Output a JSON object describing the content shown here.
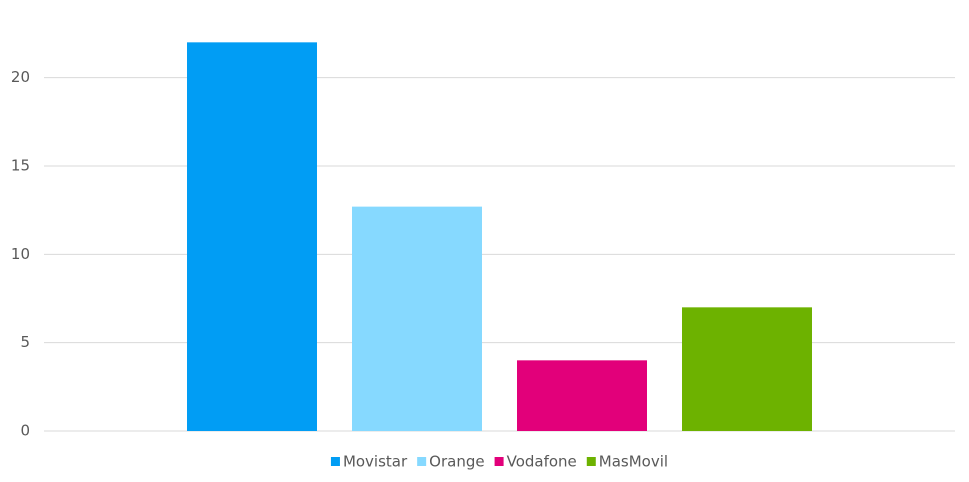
{
  "chart_data": {
    "type": "bar",
    "categories": [
      null
    ],
    "series": [
      {
        "name": "Movistar",
        "color": "#019df4",
        "values": [
          22
        ]
      },
      {
        "name": "Orange",
        "color": "#86d9ff",
        "values": [
          12.7
        ]
      },
      {
        "name": "Vodafone",
        "color": "#e2007a",
        "values": [
          4
        ]
      },
      {
        "name": "MasMovil",
        "color": "#6db200",
        "values": [
          7
        ]
      }
    ],
    "ylim": [
      0,
      24
    ],
    "yticks": [
      0,
      5,
      10,
      15,
      20
    ],
    "grid": true,
    "legend": "bottom"
  }
}
